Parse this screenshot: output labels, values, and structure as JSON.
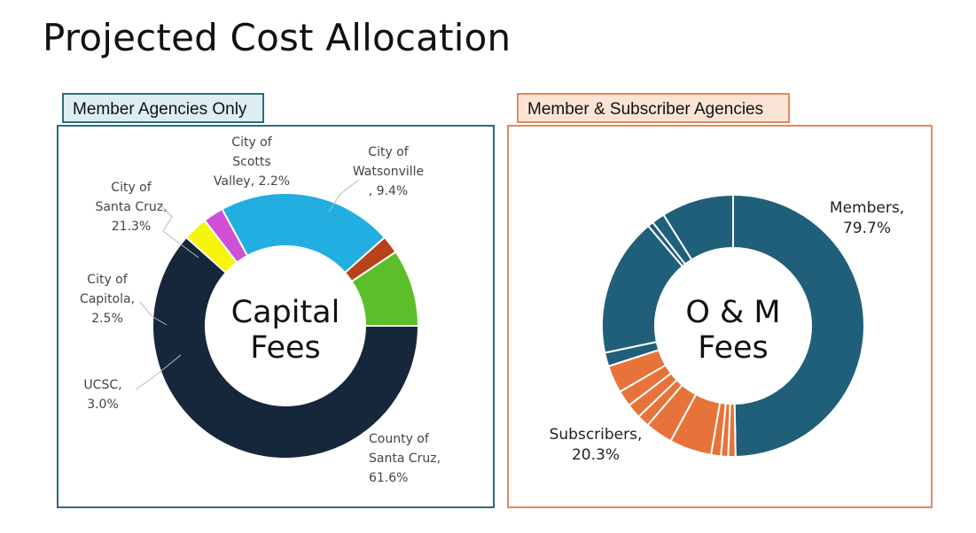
{
  "title": "Projected Cost Allocation",
  "tabs": {
    "left": "Member Agencies Only",
    "right": "Member & Subscriber Agencies"
  },
  "chart_data": [
    {
      "type": "pie",
      "variant": "donut",
      "center_label": [
        "Capital",
        "Fees"
      ],
      "slices": [
        {
          "name": "County of Santa Cruz",
          "value": 61.6,
          "label": [
            "County of",
            "Santa Cruz,",
            "61.6%"
          ],
          "color": "#16273b"
        },
        {
          "name": "UCSC",
          "value": 3.0,
          "label": [
            "UCSC,",
            "3.0%"
          ],
          "color": "#f7f50a"
        },
        {
          "name": "City of Capitola",
          "value": 2.5,
          "label": [
            "City of",
            "Capitola,",
            "2.5%"
          ],
          "color": "#cf4fd6"
        },
        {
          "name": "City of Santa Cruz",
          "value": 21.3,
          "label": [
            "City of",
            "Santa Cruz,",
            "21.3%"
          ],
          "color": "#22aee0"
        },
        {
          "name": "City of Scotts Valley",
          "value": 2.2,
          "label": [
            "City of",
            "Scotts",
            "Valley, 2.2%"
          ],
          "color": "#b8421a"
        },
        {
          "name": "City of Watsonville",
          "value": 9.4,
          "label": [
            "City of",
            "Watsonville",
            ", 9.4%"
          ],
          "color": "#5cbf2a"
        }
      ]
    },
    {
      "type": "pie",
      "variant": "donut",
      "center_label": [
        "O & M",
        "Fees"
      ],
      "groups": [
        {
          "name": "Members",
          "value": 79.7,
          "label": [
            "Members,",
            "79.7%"
          ],
          "color": "#1f5f7a"
        },
        {
          "name": "Subscribers",
          "value": 20.3,
          "label": [
            "Subscribers,",
            "20.3%"
          ],
          "color": "#e8733a"
        }
      ],
      "segments": [
        {
          "group": "Members",
          "value": 49.7
        },
        {
          "group": "Subscribers",
          "value": 0.9
        },
        {
          "group": "Subscribers",
          "value": 0.9
        },
        {
          "group": "Subscribers",
          "value": 1.2
        },
        {
          "group": "Subscribers",
          "value": 5.2
        },
        {
          "group": "Subscribers",
          "value": 3.4
        },
        {
          "group": "Subscribers",
          "value": 1.5
        },
        {
          "group": "Subscribers",
          "value": 1.8
        },
        {
          "group": "Subscribers",
          "value": 2.0
        },
        {
          "group": "Subscribers",
          "value": 3.4
        },
        {
          "group": "Members",
          "value": 1.7
        },
        {
          "group": "Members",
          "value": 17.1
        },
        {
          "group": "Members",
          "value": 0.7
        },
        {
          "group": "Members",
          "value": 1.6
        },
        {
          "group": "Members",
          "value": 8.9
        }
      ]
    }
  ]
}
